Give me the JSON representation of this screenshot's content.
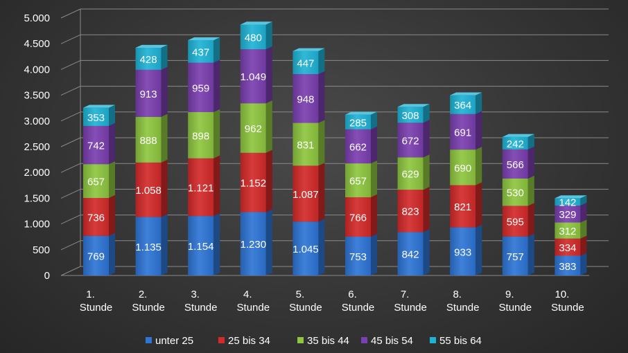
{
  "chart_data": {
    "type": "bar",
    "stacked": true,
    "three_d": true,
    "categories": [
      [
        "1.",
        "Stunde"
      ],
      [
        "2.",
        "Stunde"
      ],
      [
        "3.",
        "Stunde"
      ],
      [
        "4.",
        "Stunde"
      ],
      [
        "5.",
        "Stunde"
      ],
      [
        "6.",
        "Stunde"
      ],
      [
        "7.",
        "Stunde"
      ],
      [
        "8.",
        "Stunde"
      ],
      [
        "9.",
        "Stunde"
      ],
      [
        "10.",
        "Stunde"
      ]
    ],
    "series": [
      {
        "name": "unter 25",
        "color": "#2e75d6",
        "values": [
          769,
          1135,
          1154,
          1230,
          1045,
          753,
          842,
          933,
          757,
          383
        ]
      },
      {
        "name": "25 bis 34",
        "color": "#d42a2a",
        "values": [
          736,
          1058,
          1121,
          1152,
          1087,
          766,
          823,
          821,
          595,
          334
        ]
      },
      {
        "name": "35 bis 44",
        "color": "#8ec63f",
        "values": [
          657,
          888,
          898,
          962,
          831,
          657,
          629,
          690,
          530,
          312
        ]
      },
      {
        "name": "45 bis 54",
        "color": "#7a3fb0",
        "values": [
          742,
          913,
          959,
          1049,
          948,
          662,
          672,
          691,
          566,
          329
        ]
      },
      {
        "name": "55 bis 64",
        "color": "#1fb3d6",
        "values": [
          353,
          428,
          437,
          480,
          447,
          285,
          308,
          364,
          242,
          142
        ]
      }
    ],
    "data_labels": [
      [
        "769",
        "1.135",
        "1.154",
        "1.230",
        "1.045",
        "753",
        "842",
        "933",
        "757",
        "383"
      ],
      [
        "736",
        "1.058",
        "1.121",
        "1.152",
        "1.087",
        "766",
        "823",
        "821",
        "595",
        "334"
      ],
      [
        "657",
        "888",
        "898",
        "962",
        "831",
        "657",
        "629",
        "690",
        "530",
        "312"
      ],
      [
        "742",
        "913",
        "959",
        "1.049",
        "948",
        "662",
        "672",
        "691",
        "566",
        "329"
      ],
      [
        "353",
        "428",
        "437",
        "480",
        "447",
        "285",
        "308",
        "364",
        "242",
        "142"
      ]
    ],
    "yticks": [
      0,
      500,
      1000,
      1500,
      2000,
      2500,
      3000,
      3500,
      4000,
      4500,
      5000
    ],
    "ytick_labels": [
      "0",
      "500",
      "1.000",
      "1.500",
      "2.000",
      "2.500",
      "3.000",
      "3.500",
      "4.000",
      "4.500",
      "5.000"
    ],
    "ylim": [
      0,
      5000
    ],
    "grid": true,
    "legend_position": "bottom",
    "title": "",
    "xlabel": "",
    "ylabel": ""
  }
}
